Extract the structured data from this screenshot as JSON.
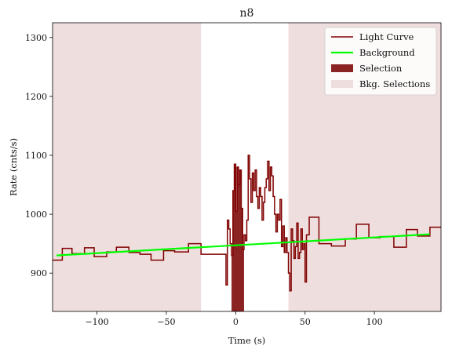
{
  "chart_data": {
    "type": "line",
    "title": "n8",
    "xlabel": "Time (s)",
    "ylabel": "Rate (cnts/s)",
    "xlim": [
      -132,
      148
    ],
    "ylim": [
      835,
      1325
    ],
    "xticks": [
      -100,
      -50,
      0,
      50,
      100
    ],
    "xtick_labels": [
      "−100",
      "−50",
      "0",
      "50",
      "100"
    ],
    "yticks": [
      900,
      1000,
      1100,
      1200,
      1300
    ],
    "ytick_labels": [
      "900",
      "1000",
      "1100",
      "1200",
      "1300"
    ],
    "grid": false,
    "legend_position": "top-right",
    "colors": {
      "light_curve": "#800000",
      "background": "#00ff00",
      "selection": "#8b2323",
      "bkg_selection": "#efdede",
      "frame": "#000000"
    },
    "legend": [
      {
        "label": "Light Curve",
        "kind": "line",
        "color": "#800000"
      },
      {
        "label": "Background",
        "kind": "line",
        "color": "#00ff00"
      },
      {
        "label": "Selection",
        "kind": "patch",
        "color": "#8b2323"
      },
      {
        "label": "Bkg. Selections",
        "kind": "patch",
        "color": "#efdede"
      }
    ],
    "series": [
      {
        "name": "Light Curve",
        "step_edges": [
          -132,
          -125,
          -118,
          -109,
          -102,
          -93,
          -86,
          -77,
          -69,
          -61,
          -52,
          -44,
          -34,
          -25,
          -16,
          -7,
          -6,
          -5,
          -4,
          -3,
          -2,
          -1,
          0,
          1,
          2,
          3,
          4,
          5,
          6,
          7,
          8,
          9,
          10,
          11,
          12,
          13,
          14,
          15,
          16,
          17,
          18,
          19,
          20,
          21,
          22,
          23,
          24,
          25,
          26,
          27,
          28,
          29,
          30,
          31,
          32,
          33,
          34,
          35,
          36,
          37,
          38,
          39,
          40,
          41,
          42,
          43,
          44,
          45,
          46,
          47,
          48,
          49,
          50,
          51,
          53,
          60,
          69,
          79,
          87,
          96,
          104,
          114,
          123,
          131,
          140,
          148
        ],
        "values": [
          922,
          942,
          933,
          943,
          928,
          936,
          944,
          935,
          932,
          922,
          938,
          936,
          950,
          932,
          932,
          880,
          990,
          975,
          950,
          930,
          1040,
          1085,
          1005,
          1080,
          1050,
          1075,
          1010,
          940,
          965,
          955,
          990,
          1100,
          1060,
          1020,
          1070,
          1040,
          1075,
          1030,
          1010,
          1045,
          1030,
          990,
          1020,
          1045,
          1060,
          1090,
          1040,
          1080,
          1065,
          1030,
          1000,
          970,
          1000,
          990,
          1025,
          945,
          980,
          935,
          960,
          935,
          900,
          870,
          975,
          955,
          925,
          945,
          985,
          925,
          935,
          975,
          940,
          950,
          885,
          965,
          995,
          950,
          946,
          958,
          983,
          960,
          962,
          944,
          974,
          963,
          978
        ]
      },
      {
        "name": "Background",
        "x": [
          -132,
          140
        ],
        "y": [
          930,
          966
        ]
      }
    ],
    "selection": {
      "x0": -3,
      "x1": 6
    },
    "bkg_selections": [
      [
        -132,
        -25
      ],
      [
        38,
        148
      ]
    ]
  }
}
